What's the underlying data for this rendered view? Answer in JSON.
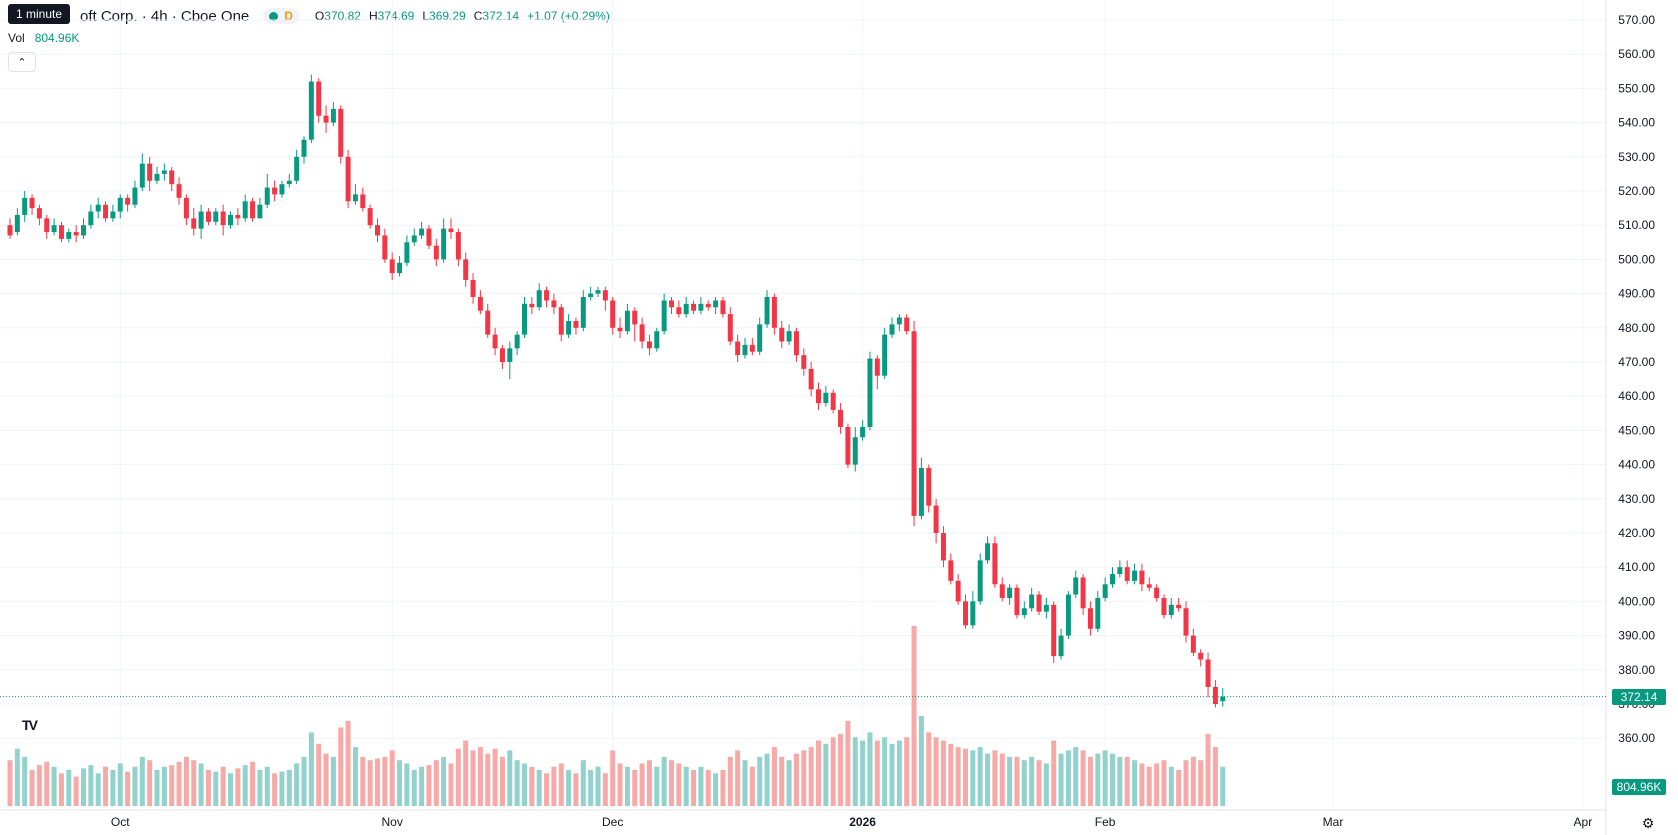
{
  "header": {
    "tooltip": "1 minute",
    "symbol": "oft Corp. · 4h · Cboe One",
    "interval_badge": "D",
    "ohlc": [
      {
        "label": "O",
        "value": "370.82"
      },
      {
        "label": "H",
        "value": "374.69"
      },
      {
        "label": "L",
        "value": "369.29"
      },
      {
        "label": "C",
        "value": "372.14"
      }
    ],
    "change": "+1.07 (+0.29%)",
    "vol_label": "Vol",
    "vol_value": "804.96K",
    "collapse_icon": "chevron-up-icon"
  },
  "price_tag": "372.14",
  "volume_tag": "804.96K",
  "colors": {
    "up": "#089981",
    "down": "#f23645",
    "up_vol": "#92d2cc",
    "down_vol": "#f7a9a7",
    "grid": "#f0f3fa",
    "text": "#131722"
  },
  "chart_data": {
    "type": "candlestick",
    "title": "",
    "xlabel": "",
    "ylabel": "",
    "ylim": [
      355,
      575
    ],
    "yticks": [
      360,
      370,
      380,
      390,
      400,
      410,
      420,
      430,
      440,
      450,
      460,
      470,
      480,
      490,
      500,
      510,
      520,
      530,
      540,
      550,
      560,
      570
    ],
    "ytick_labels": [
      "360.00",
      "370.00",
      "380.00",
      "390.00",
      "400.00",
      "410.00",
      "420.00",
      "430.00",
      "440.00",
      "450.00",
      "460.00",
      "470.00",
      "480.00",
      "490.00",
      "500.00",
      "510.00",
      "520.00",
      "530.00",
      "540.00",
      "550.00",
      "560.00",
      "570.00"
    ],
    "xtick_labels": [
      {
        "label": "Oct",
        "bar": 15,
        "bold": false
      },
      {
        "label": "Nov",
        "bar": 52,
        "bold": false
      },
      {
        "label": "Dec",
        "bar": 82,
        "bold": false
      },
      {
        "label": "2026",
        "bar": 116,
        "bold": true
      },
      {
        "label": "Feb",
        "bar": 149,
        "bold": false
      },
      {
        "label": "Mar",
        "bar": 180,
        "bold": false
      },
      {
        "label": "Apr",
        "bar": 214,
        "bold": false
      }
    ],
    "last_price": 372.14,
    "bars": [
      [
        510,
        507,
        512,
        506,
        28
      ],
      [
        508,
        513,
        515,
        507,
        35
      ],
      [
        513,
        518,
        520,
        511,
        30
      ],
      [
        518,
        515,
        519,
        513,
        22
      ],
      [
        515,
        512,
        516,
        510,
        25
      ],
      [
        512,
        508,
        513,
        506,
        27
      ],
      [
        508,
        510,
        512,
        507,
        24
      ],
      [
        510,
        506,
        511,
        505,
        20
      ],
      [
        506,
        508,
        509,
        505,
        22
      ],
      [
        508,
        507,
        510,
        505,
        18
      ],
      [
        507,
        510,
        512,
        506,
        23
      ],
      [
        510,
        514,
        516,
        509,
        25
      ],
      [
        514,
        516,
        518,
        512,
        20
      ],
      [
        516,
        512,
        517,
        511,
        24
      ],
      [
        512,
        514,
        516,
        511,
        22
      ],
      [
        514,
        518,
        519,
        512,
        26
      ],
      [
        518,
        516,
        519,
        514,
        21
      ],
      [
        516,
        521,
        523,
        515,
        24
      ],
      [
        521,
        528,
        531,
        520,
        30
      ],
      [
        528,
        523,
        530,
        520,
        28
      ],
      [
        523,
        525,
        527,
        522,
        22
      ],
      [
        525,
        526,
        528,
        523,
        24
      ],
      [
        526,
        522,
        527,
        520,
        25
      ],
      [
        522,
        518,
        524,
        516,
        27
      ],
      [
        518,
        512,
        519,
        510,
        30
      ],
      [
        512,
        509,
        515,
        507,
        28
      ],
      [
        509,
        514,
        516,
        506,
        26
      ],
      [
        514,
        511,
        515,
        510,
        22
      ],
      [
        511,
        514,
        515,
        510,
        21
      ],
      [
        514,
        510,
        516,
        507,
        24
      ],
      [
        510,
        513,
        514,
        509,
        20
      ],
      [
        513,
        512,
        515,
        510,
        23
      ],
      [
        512,
        517,
        519,
        511,
        25
      ],
      [
        517,
        512,
        518,
        511,
        27
      ],
      [
        512,
        516,
        518,
        512,
        22
      ],
      [
        516,
        521,
        525,
        515,
        24
      ],
      [
        521,
        519,
        523,
        517,
        20
      ],
      [
        519,
        522,
        523,
        518,
        21
      ],
      [
        522,
        523,
        525,
        521,
        22
      ],
      [
        523,
        530,
        532,
        522,
        26
      ],
      [
        530,
        535,
        536,
        528,
        30
      ],
      [
        535,
        552,
        554,
        534,
        45
      ],
      [
        552,
        542,
        553,
        540,
        38
      ],
      [
        542,
        540,
        545,
        537,
        32
      ],
      [
        540,
        544,
        546,
        539,
        30
      ],
      [
        544,
        530,
        545,
        528,
        48
      ],
      [
        530,
        517,
        532,
        515,
        52
      ],
      [
        517,
        519,
        522,
        516,
        36
      ],
      [
        519,
        515,
        521,
        514,
        30
      ],
      [
        515,
        510,
        516,
        509,
        28
      ],
      [
        510,
        507,
        512,
        505,
        29
      ],
      [
        507,
        500,
        509,
        499,
        30
      ],
      [
        500,
        496,
        502,
        494,
        34
      ],
      [
        496,
        499,
        501,
        495,
        28
      ],
      [
        499,
        505,
        507,
        498,
        26
      ],
      [
        505,
        507,
        509,
        504,
        22
      ],
      [
        507,
        509,
        511,
        506,
        24
      ],
      [
        509,
        504,
        510,
        503,
        25
      ],
      [
        504,
        500,
        506,
        498,
        28
      ],
      [
        500,
        509,
        512,
        499,
        30
      ],
      [
        509,
        508,
        512,
        506,
        26
      ],
      [
        508,
        500,
        509,
        498,
        35
      ],
      [
        500,
        494,
        502,
        492,
        40
      ],
      [
        494,
        489,
        496,
        487,
        34
      ],
      [
        489,
        485,
        491,
        484,
        36
      ],
      [
        485,
        478,
        487,
        477,
        32
      ],
      [
        478,
        474,
        480,
        472,
        35
      ],
      [
        474,
        470,
        475,
        468,
        30
      ],
      [
        470,
        474,
        476,
        465,
        34
      ],
      [
        474,
        478,
        479,
        472,
        28
      ],
      [
        478,
        487,
        489,
        477,
        26
      ],
      [
        487,
        486,
        489,
        484,
        24
      ],
      [
        486,
        491,
        493,
        485,
        22
      ],
      [
        491,
        488,
        492,
        486,
        20
      ],
      [
        488,
        486,
        490,
        484,
        24
      ],
      [
        486,
        478,
        487,
        476,
        26
      ],
      [
        478,
        482,
        484,
        477,
        22
      ],
      [
        482,
        480,
        483,
        478,
        20
      ],
      [
        480,
        489,
        491,
        479,
        28
      ],
      [
        489,
        490,
        492,
        488,
        22
      ],
      [
        490,
        491,
        492,
        489,
        24
      ],
      [
        491,
        488,
        492,
        485,
        20
      ],
      [
        488,
        480,
        489,
        478,
        34
      ],
      [
        480,
        479,
        483,
        477,
        26
      ],
      [
        479,
        485,
        487,
        478,
        24
      ],
      [
        485,
        481,
        486,
        476,
        22
      ],
      [
        481,
        476,
        483,
        474,
        26
      ],
      [
        476,
        474,
        478,
        472,
        28
      ],
      [
        474,
        479,
        480,
        473,
        24
      ],
      [
        479,
        488,
        490,
        478,
        30
      ],
      [
        488,
        486,
        489,
        484,
        28
      ],
      [
        486,
        484,
        488,
        483,
        26
      ],
      [
        484,
        487,
        489,
        483,
        24
      ],
      [
        487,
        485,
        488,
        484,
        22
      ],
      [
        485,
        487,
        489,
        484,
        24
      ],
      [
        487,
        486,
        488,
        485,
        22
      ],
      [
        486,
        488,
        489,
        484,
        20
      ],
      [
        488,
        484,
        489,
        483,
        22
      ],
      [
        484,
        476,
        486,
        475,
        30
      ],
      [
        476,
        472,
        478,
        470,
        34
      ],
      [
        472,
        475,
        477,
        471,
        28
      ],
      [
        475,
        473,
        477,
        472,
        24
      ],
      [
        473,
        481,
        483,
        472,
        30
      ],
      [
        481,
        489,
        491,
        480,
        32
      ],
      [
        489,
        480,
        490,
        478,
        36
      ],
      [
        480,
        476,
        482,
        474,
        30
      ],
      [
        476,
        479,
        481,
        475,
        28
      ],
      [
        479,
        472,
        480,
        470,
        32
      ],
      [
        472,
        468,
        474,
        466,
        34
      ],
      [
        468,
        462,
        470,
        460,
        36
      ],
      [
        462,
        458,
        464,
        456,
        40
      ],
      [
        458,
        461,
        463,
        457,
        38
      ],
      [
        461,
        456,
        462,
        455,
        42
      ],
      [
        456,
        451,
        458,
        449,
        44
      ],
      [
        451,
        440,
        452,
        439,
        52
      ],
      [
        440,
        448,
        451,
        438,
        42
      ],
      [
        448,
        451,
        453,
        447,
        40
      ],
      [
        451,
        471,
        473,
        450,
        45
      ],
      [
        471,
        466,
        472,
        462,
        40
      ],
      [
        466,
        478,
        480,
        465,
        42
      ],
      [
        478,
        481,
        483,
        477,
        38
      ],
      [
        481,
        483,
        484,
        479,
        40
      ],
      [
        483,
        479,
        484,
        478,
        42
      ],
      [
        479,
        425,
        482,
        422,
        110
      ],
      [
        425,
        439,
        442,
        424,
        55
      ],
      [
        439,
        428,
        440,
        426,
        45
      ],
      [
        428,
        420,
        430,
        417,
        42
      ],
      [
        420,
        412,
        422,
        410,
        40
      ],
      [
        412,
        406,
        414,
        405,
        38
      ],
      [
        406,
        400,
        408,
        399,
        36
      ],
      [
        400,
        393,
        402,
        392,
        35
      ],
      [
        393,
        400,
        403,
        392,
        34
      ],
      [
        400,
        412,
        414,
        399,
        36
      ],
      [
        412,
        417,
        419,
        411,
        32
      ],
      [
        417,
        405,
        419,
        404,
        34
      ],
      [
        405,
        401,
        407,
        400,
        32
      ],
      [
        401,
        404,
        405,
        399,
        30
      ],
      [
        404,
        396,
        405,
        395,
        30
      ],
      [
        396,
        398,
        400,
        395,
        28
      ],
      [
        398,
        402,
        404,
        397,
        30
      ],
      [
        402,
        397,
        403,
        396,
        28
      ],
      [
        397,
        399,
        401,
        395,
        26
      ],
      [
        399,
        384,
        400,
        382,
        40
      ],
      [
        384,
        390,
        392,
        383,
        32
      ],
      [
        390,
        402,
        403,
        389,
        34
      ],
      [
        402,
        407,
        409,
        401,
        36
      ],
      [
        407,
        398,
        408,
        396,
        34
      ],
      [
        398,
        392,
        400,
        390,
        30
      ],
      [
        392,
        401,
        403,
        391,
        32
      ],
      [
        401,
        405,
        407,
        400,
        34
      ],
      [
        405,
        408,
        410,
        404,
        32
      ],
      [
        408,
        410,
        412,
        407,
        30
      ],
      [
        410,
        406,
        412,
        405,
        30
      ],
      [
        406,
        409,
        411,
        405,
        28
      ],
      [
        409,
        405,
        411,
        403,
        26
      ],
      [
        405,
        404,
        407,
        403,
        24
      ],
      [
        404,
        401,
        405,
        400,
        26
      ],
      [
        401,
        396,
        402,
        395,
        28
      ],
      [
        396,
        399,
        401,
        395,
        24
      ],
      [
        399,
        398,
        401,
        397,
        22
      ],
      [
        398,
        390,
        400,
        388,
        28
      ],
      [
        390,
        385,
        392,
        384,
        30
      ],
      [
        385,
        383,
        386,
        381,
        28
      ],
      [
        383,
        375,
        385,
        372,
        44
      ],
      [
        375,
        370,
        377,
        369,
        36
      ],
      [
        370.82,
        372.14,
        374.69,
        369.29,
        24
      ]
    ]
  }
}
